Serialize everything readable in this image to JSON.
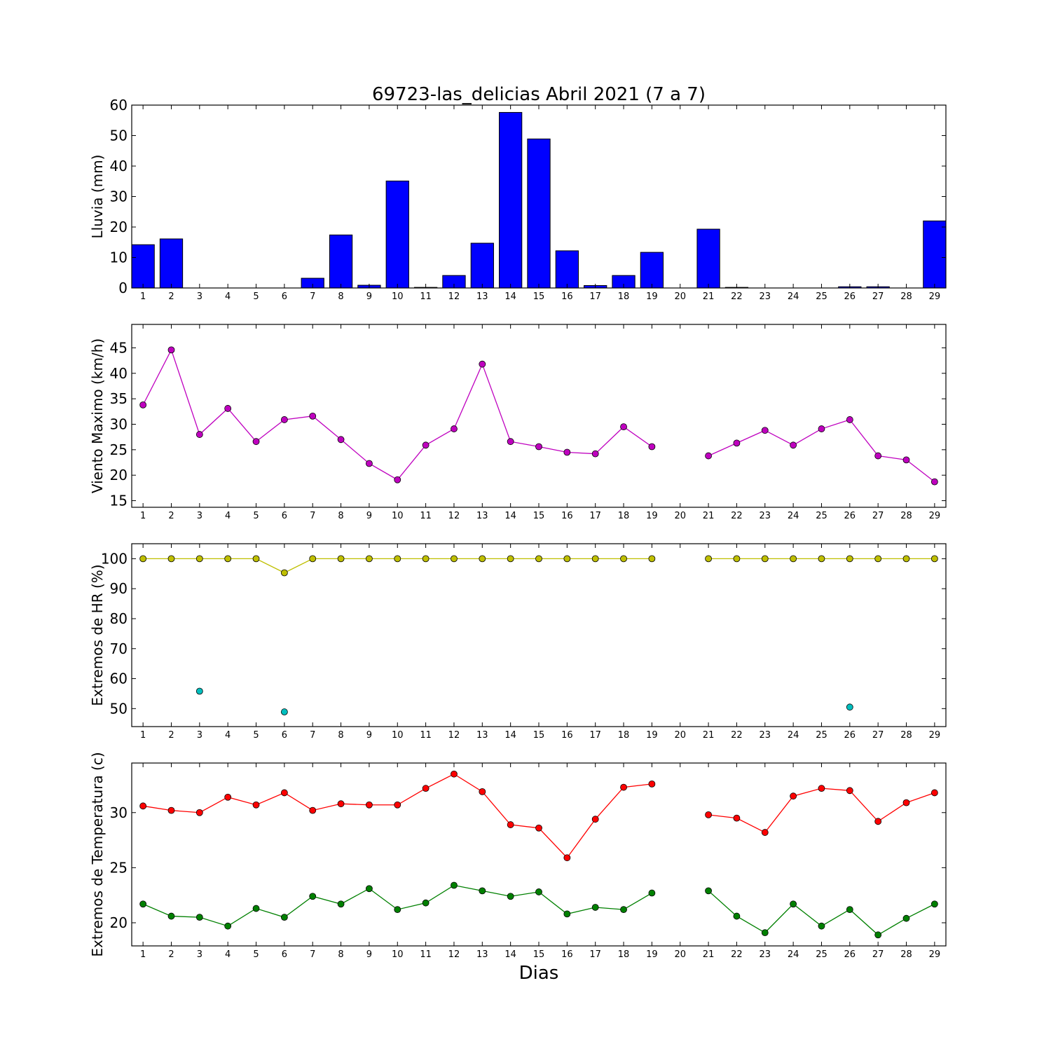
{
  "figure": {
    "title": "69723-las_delicias Abril 2021  (7 a 7)",
    "xlabel": "Dias"
  },
  "chart_data": [
    {
      "type": "bar",
      "categories": [
        "1",
        "2",
        "3",
        "4",
        "5",
        "6",
        "7",
        "8",
        "9",
        "10",
        "11",
        "12",
        "13",
        "14",
        "15",
        "16",
        "17",
        "18",
        "19",
        "20",
        "21",
        "22",
        "23",
        "24",
        "25",
        "26",
        "27",
        "28",
        "29"
      ],
      "values": [
        14.2,
        16.1,
        0,
        0,
        0,
        0,
        3.2,
        17.4,
        0.9,
        35.1,
        0.2,
        4.1,
        14.7,
        57.6,
        48.9,
        12.2,
        0.8,
        4.1,
        11.7,
        null,
        19.3,
        0.2,
        0,
        0,
        0,
        0.4,
        0.4,
        0,
        22.0
      ],
      "ylabel": "Lluvia (mm)",
      "ylim": [
        0,
        60
      ],
      "yticks": [
        0,
        10,
        20,
        30,
        40,
        50,
        60
      ],
      "color": "#0000ff",
      "grid": false
    },
    {
      "type": "line",
      "categories": [
        "1",
        "2",
        "3",
        "4",
        "5",
        "6",
        "7",
        "8",
        "9",
        "10",
        "11",
        "12",
        "13",
        "14",
        "15",
        "16",
        "17",
        "18",
        "19",
        "20",
        "21",
        "22",
        "23",
        "24",
        "25",
        "26",
        "27",
        "28",
        "29"
      ],
      "series": [
        {
          "color": "#bf00bf",
          "values": [
            33.8,
            44.6,
            28.0,
            33.1,
            26.6,
            30.9,
            31.6,
            27.0,
            22.3,
            19.1,
            25.9,
            29.1,
            41.8,
            26.6,
            25.6,
            24.5,
            24.2,
            29.5,
            25.6,
            null,
            23.8,
            26.3,
            28.8,
            25.9,
            29.1,
            30.9,
            23.8,
            23.0,
            18.7
          ]
        }
      ],
      "ylabel": "Viento Maximo (km/h)",
      "ylim": [
        13.7,
        49.6
      ],
      "yticks": [
        15,
        20,
        25,
        30,
        35,
        40,
        45
      ],
      "grid": false
    },
    {
      "type": "line",
      "categories": [
        "1",
        "2",
        "3",
        "4",
        "5",
        "6",
        "7",
        "8",
        "9",
        "10",
        "11",
        "12",
        "13",
        "14",
        "15",
        "16",
        "17",
        "18",
        "19",
        "20",
        "21",
        "22",
        "23",
        "24",
        "25",
        "26",
        "27",
        "28",
        "29"
      ],
      "series": [
        {
          "color": "#bfbf00",
          "values": [
            100,
            100,
            100,
            100,
            100,
            95.3,
            100,
            100,
            100,
            100,
            100,
            100,
            100,
            100,
            100,
            100,
            100,
            100,
            100,
            null,
            100,
            100,
            100,
            100,
            100,
            100,
            100,
            100,
            100
          ]
        },
        {
          "color": "#00bfbf",
          "values": [
            null,
            null,
            55.8,
            null,
            null,
            48.9,
            null,
            null,
            null,
            null,
            null,
            null,
            null,
            null,
            null,
            null,
            null,
            null,
            null,
            null,
            null,
            null,
            null,
            null,
            null,
            50.5,
            null,
            null,
            null
          ]
        }
      ],
      "ylabel": "Extremos de HR (%)",
      "ylim": [
        44,
        105
      ],
      "yticks": [
        50,
        60,
        70,
        80,
        90,
        100
      ],
      "grid": false
    },
    {
      "type": "line",
      "categories": [
        "1",
        "2",
        "3",
        "4",
        "5",
        "6",
        "7",
        "8",
        "9",
        "10",
        "11",
        "12",
        "13",
        "14",
        "15",
        "16",
        "17",
        "18",
        "19",
        "20",
        "21",
        "22",
        "23",
        "24",
        "25",
        "26",
        "27",
        "28",
        "29"
      ],
      "series": [
        {
          "color": "#ff0000",
          "values": [
            30.6,
            30.2,
            30.0,
            31.4,
            30.7,
            31.8,
            30.2,
            30.8,
            30.7,
            30.7,
            32.2,
            33.5,
            31.9,
            28.9,
            28.6,
            25.9,
            29.4,
            32.3,
            32.6,
            null,
            29.8,
            29.5,
            28.2,
            31.5,
            32.2,
            32.0,
            29.2,
            30.9,
            31.8
          ]
        },
        {
          "color": "#008000",
          "values": [
            21.7,
            20.6,
            20.5,
            19.7,
            21.3,
            20.5,
            22.4,
            21.7,
            23.1,
            21.2,
            21.8,
            23.4,
            22.9,
            22.4,
            22.8,
            20.8,
            21.4,
            21.2,
            22.7,
            null,
            22.9,
            20.6,
            19.1,
            21.7,
            19.7,
            21.2,
            18.9,
            20.4,
            21.7
          ]
        }
      ],
      "ylabel": "Extremos de Temperatura (c)",
      "ylim": [
        17.9,
        34.5
      ],
      "yticks": [
        20,
        25,
        30
      ],
      "grid": false
    }
  ]
}
